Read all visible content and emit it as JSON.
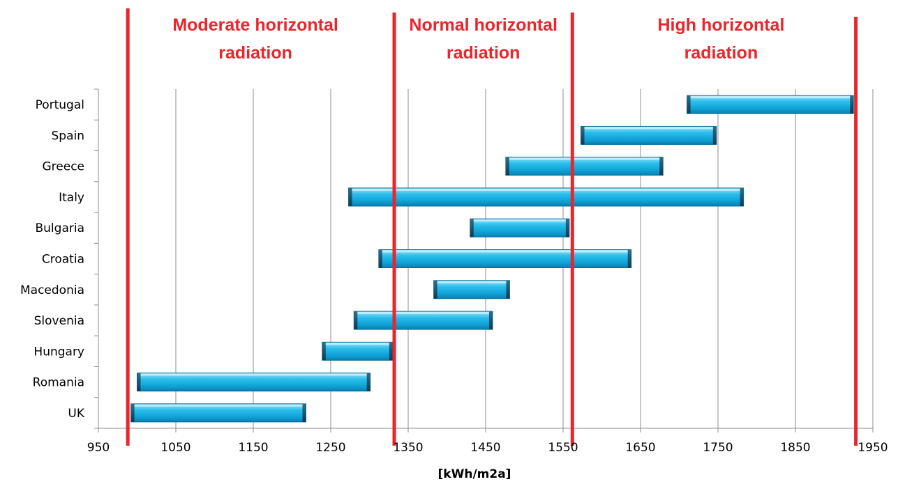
{
  "chart_data": {
    "type": "bar",
    "orientation": "horizontal-range",
    "categories": [
      "Portugal",
      "Spain",
      "Greece",
      "Italy",
      "Bulgaria",
      "Croatia",
      "Macedonia",
      "Slovenia",
      "Hungary",
      "Romania",
      "UK"
    ],
    "series": [
      {
        "ranges": [
          [
            1710,
            1925
          ],
          [
            1573,
            1748
          ],
          [
            1476,
            1679
          ],
          [
            1273,
            1783
          ],
          [
            1430,
            1558
          ],
          [
            1312,
            1638
          ],
          [
            1383,
            1481
          ],
          [
            1280,
            1459
          ],
          [
            1239,
            1330
          ],
          [
            1000,
            1301
          ],
          [
            992,
            1218
          ]
        ]
      }
    ],
    "xlabel": "[kWh/m2a]",
    "ylabel": "",
    "xlim": [
      950,
      1950
    ],
    "xticks": [
      "950",
      "1050",
      "1150",
      "1250",
      "1350",
      "1450",
      "1550",
      "1650",
      "1750",
      "1850",
      "1950"
    ],
    "grid": "vertical",
    "bar_color": "#1EB4E6",
    "zones": {
      "boundaries": [
        988,
        1332,
        1562,
        1928
      ],
      "line_color": "#E8262B",
      "labels": [
        {
          "line1": "Moderate horizontal",
          "line2": "radiation"
        },
        {
          "line1": "Normal horizontal",
          "line2": "radiation"
        },
        {
          "line1": "High horizontal",
          "line2": "radiation"
        }
      ]
    }
  }
}
